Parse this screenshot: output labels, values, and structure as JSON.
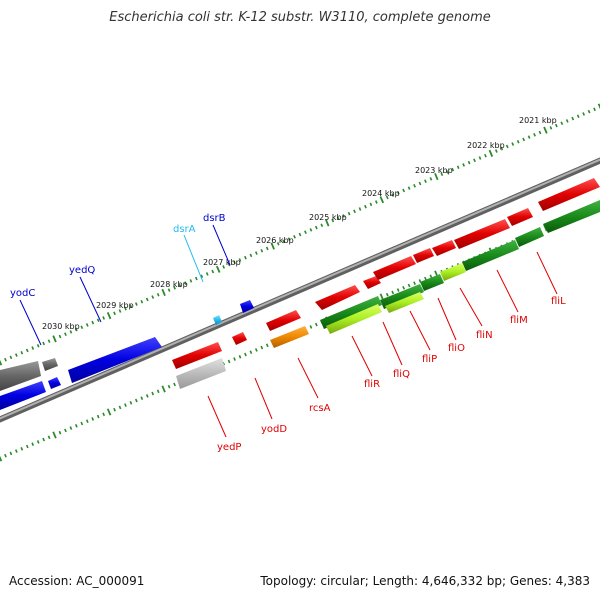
{
  "title": "Escherichia coli str. K-12 substr. W3110, complete genome",
  "footer": {
    "accession": "Accession: AC_000091",
    "info": "Topology: circular; Length: 4,646,332 bp; Genes: 4,383"
  },
  "scale": {
    "ticks": [
      {
        "label": "2021 kbp",
        "kbp": 2021
      },
      {
        "label": "2022 kbp",
        "kbp": 2022
      },
      {
        "label": "2023 kbp",
        "kbp": 2023
      },
      {
        "label": "2024 kbp",
        "kbp": 2024
      },
      {
        "label": "2025 kbp",
        "kbp": 2025
      },
      {
        "label": "2026 kbp",
        "kbp": 2026
      },
      {
        "label": "2027 kbp",
        "kbp": 2027
      },
      {
        "label": "2028 kbp",
        "kbp": 2028
      },
      {
        "label": "2029 kbp",
        "kbp": 2029
      },
      {
        "label": "2030 kbp",
        "kbp": 2030
      }
    ]
  },
  "colors": {
    "red": "#e00000",
    "blue": "#0000e0",
    "cyan": "#22bbee",
    "gray": "#666666",
    "lightgray": "#b8b8b8",
    "orange": "#ee8800",
    "green": "#1a8a1a",
    "lightgreen": "#aaee22",
    "tick": "#2a8a2a",
    "backbone": "#808080"
  },
  "genes": [
    {
      "name": "yodC",
      "color": "blue"
    },
    {
      "name": "yedQ",
      "color": "blue"
    },
    {
      "name": "dsrA",
      "color": "cyan"
    },
    {
      "name": "dsrB",
      "color": "blue"
    },
    {
      "name": "yedP",
      "color": "red"
    },
    {
      "name": "yodD",
      "color": "red"
    },
    {
      "name": "rcsA",
      "color": "red"
    },
    {
      "name": "fliR",
      "color": "red"
    },
    {
      "name": "fliQ",
      "color": "red"
    },
    {
      "name": "fliP",
      "color": "red"
    },
    {
      "name": "fliO",
      "color": "red"
    },
    {
      "name": "fliN",
      "color": "red"
    },
    {
      "name": "fliM",
      "color": "red"
    },
    {
      "name": "fliL",
      "color": "red"
    }
  ]
}
